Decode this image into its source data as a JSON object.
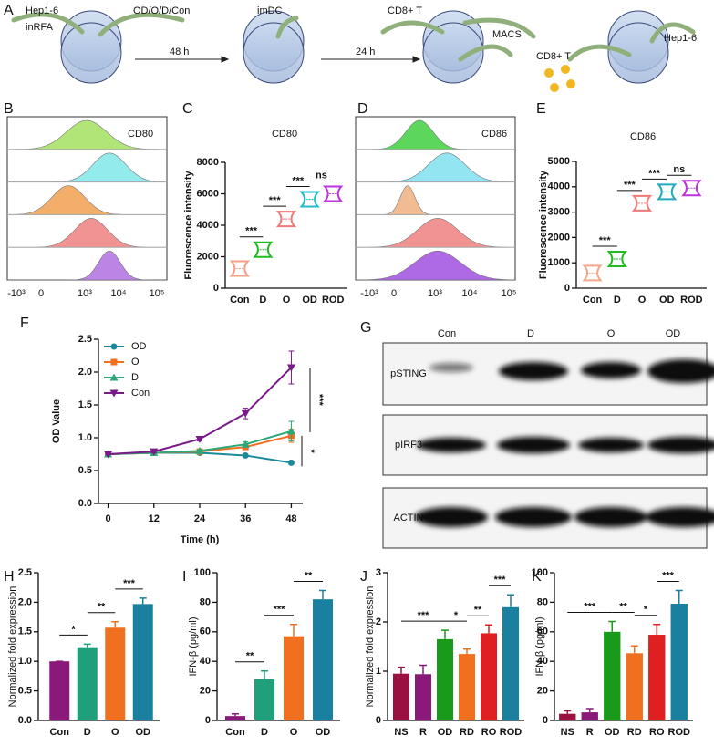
{
  "schematic": {
    "panel": "A",
    "texts": [
      "Hep1-6",
      "inRFA",
      "OD/O/D/Con",
      "48 h",
      "imDC",
      "24 h",
      "CD8+ T",
      "MACS",
      "CD8+ T",
      "Hep1-6"
    ]
  },
  "flow": [
    {
      "panel": "B",
      "title": "CD80",
      "tick_labels": [
        "-10³",
        "0",
        "10³",
        "10⁴",
        "10⁵"
      ]
    },
    {
      "panel": "D",
      "title": "CD86",
      "tick_labels": [
        "-10³",
        "0",
        "10³",
        "10⁴",
        "10⁵"
      ]
    }
  ],
  "western_blot": {
    "panel": "G",
    "lanes": [
      "Con",
      "D",
      "O",
      "OD"
    ],
    "rows": [
      "pSTING",
      "pIRF3",
      "ACTIN"
    ]
  },
  "chart_data": [
    {
      "type": "violin",
      "panel": "C",
      "title": "CD80",
      "ylabel": "Fluorescence intensity",
      "categories": [
        "Con",
        "D",
        "O",
        "OD",
        "ROD"
      ],
      "values": [
        1250,
        2450,
        4400,
        5650,
        6000
      ],
      "colors": [
        "#f0a088",
        "#22bb22",
        "#f07878",
        "#22bbcc",
        "#bb33dd"
      ],
      "ylim": [
        0,
        8000
      ],
      "yticks": [
        0,
        2000,
        4000,
        6000,
        8000
      ],
      "annotations": [
        "***",
        "***",
        "***",
        "ns"
      ]
    },
    {
      "type": "violin",
      "panel": "E",
      "title": "CD86",
      "ylabel": "Fluorescence intensity",
      "categories": [
        "Con",
        "D",
        "O",
        "OD",
        "ROD"
      ],
      "values": [
        600,
        1150,
        3350,
        3800,
        3950
      ],
      "colors": [
        "#f0a888",
        "#22bb22",
        "#f07878",
        "#22aabb",
        "#bb33dd"
      ],
      "ylim": [
        0,
        5000
      ],
      "yticks": [
        0,
        1000,
        2000,
        3000,
        4000,
        5000
      ],
      "annotations": [
        "***",
        "***",
        "***",
        "ns"
      ]
    },
    {
      "type": "line",
      "panel": "F",
      "xlabel": "Time (h)",
      "ylabel": "OD Value",
      "x": [
        0,
        12,
        24,
        36,
        48
      ],
      "xlim": [
        -3,
        51
      ],
      "xticks": [
        0,
        12,
        24,
        36,
        48
      ],
      "ylim": [
        0,
        2.5
      ],
      "yticks": [
        {
          "value": 0,
          "label": "0.0"
        },
        0.5,
        {
          "value": 1,
          "label": "1.0"
        },
        1.5,
        {
          "value": 2,
          "label": "2.0"
        },
        2.5
      ],
      "legend": "upper left",
      "series": [
        {
          "name": "OD",
          "color": "#1a8a9a",
          "marker": "circle",
          "values": [
            0.75,
            0.77,
            0.77,
            0.73,
            0.62
          ],
          "errors": [
            0.01,
            0.02,
            0.02,
            0.02,
            0.02
          ]
        },
        {
          "name": "O",
          "color": "#f07020",
          "marker": "square",
          "values": [
            0.75,
            0.77,
            0.79,
            0.86,
            1.03
          ],
          "errors": [
            0.01,
            0.02,
            0.02,
            0.03,
            0.1
          ]
        },
        {
          "name": "D",
          "color": "#2aa878",
          "marker": "triangle-up",
          "values": [
            0.75,
            0.77,
            0.8,
            0.9,
            1.1
          ],
          "errors": [
            0.01,
            0.02,
            0.02,
            0.04,
            0.15
          ]
        },
        {
          "name": "Con",
          "color": "#7a1a8a",
          "marker": "triangle-down",
          "values": [
            0.75,
            0.79,
            0.98,
            1.37,
            2.07
          ],
          "errors": [
            0.01,
            0.02,
            0.03,
            0.08,
            0.25
          ]
        }
      ],
      "annotations": [
        "***",
        "*"
      ]
    },
    {
      "type": "bar",
      "panel": "H",
      "ylabel": "Normalized fold expression",
      "categories": [
        "Con",
        "D",
        "O",
        "OD"
      ],
      "values": [
        1,
        1.24,
        1.57,
        1.97
      ],
      "errors": [
        0,
        0.05,
        0.1,
        0.1
      ],
      "colors": [
        "#8a1a7a",
        "#1fa07a",
        "#f07020",
        "#1a80a0"
      ],
      "ylim": [
        0,
        2.5
      ],
      "yticks": [
        {
          "value": 0,
          "label": "0.0"
        },
        0.5,
        {
          "value": 1,
          "label": "1.0"
        },
        1.5,
        {
          "value": 2,
          "label": "2.0"
        },
        2.5
      ],
      "annotations": [
        "*",
        "**",
        "***"
      ]
    },
    {
      "type": "bar",
      "panel": "I",
      "ylabel": "IFN-β (pg/ml)",
      "categories": [
        "Con",
        "D",
        "O",
        "OD"
      ],
      "values": [
        3,
        28,
        57,
        82
      ],
      "errors": [
        1.5,
        5.5,
        8,
        6
      ],
      "colors": [
        "#8a1a7a",
        "#1fa07a",
        "#f07020",
        "#1a80a0"
      ],
      "ylim": [
        0,
        100
      ],
      "yticks": [
        0,
        20,
        40,
        60,
        80,
        100
      ],
      "annotations": [
        "**",
        "***",
        "**"
      ]
    },
    {
      "type": "bar",
      "panel": "J",
      "ylabel": "Normalized fold expression",
      "categories": [
        "NS",
        "R",
        "OD",
        "RD",
        "RO",
        "ROD"
      ],
      "values": [
        0.95,
        0.94,
        1.65,
        1.35,
        1.77,
        2.3
      ],
      "errors": [
        0.13,
        0.18,
        0.18,
        0.1,
        0.17,
        0.25
      ],
      "colors": [
        "#9a1040",
        "#8a1a7a",
        "#1a9a1a",
        "#f07020",
        "#e02020",
        "#1a80a0"
      ],
      "ylim": [
        0,
        3
      ],
      "yticks": [
        0,
        1,
        2,
        3
      ],
      "annotations": [
        "***",
        "*",
        "**",
        "***"
      ]
    },
    {
      "type": "bar",
      "panel": "K",
      "ylabel": "IFN-β (pg/ml)",
      "categories": [
        "NS",
        "R",
        "OD",
        "RD",
        "RO",
        "ROD"
      ],
      "values": [
        4.5,
        5.5,
        60,
        45.5,
        58,
        79
      ],
      "errors": [
        2,
        2.5,
        7,
        5,
        7,
        9
      ],
      "colors": [
        "#9a1040",
        "#8a1a7a",
        "#1a9a1a",
        "#f07020",
        "#e02020",
        "#1a80a0"
      ],
      "ylim": [
        0,
        100
      ],
      "yticks": [
        0,
        20,
        40,
        60,
        80,
        100
      ],
      "annotations": [
        "***",
        "**",
        "*",
        "***"
      ]
    }
  ]
}
